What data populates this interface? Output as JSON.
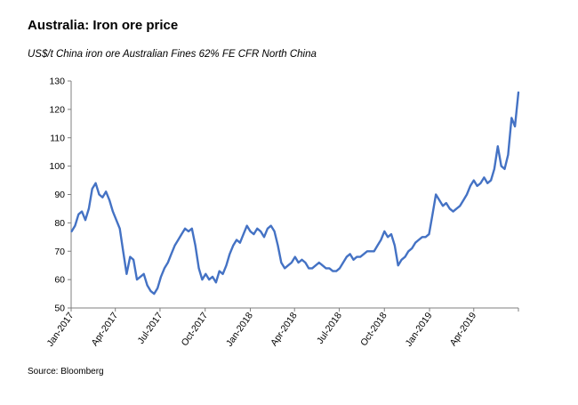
{
  "header": {
    "title": "Australia: Iron ore price",
    "subtitle": "US$/t  China iron ore Australian Fines 62% FE CFR North China"
  },
  "footer": {
    "source": "Source: Bloomberg"
  },
  "chart_data": {
    "type": "line",
    "title": "Australia: Iron ore price",
    "ylabel": "US$/t",
    "xlabel": "",
    "ylim": [
      50,
      130
    ],
    "yticks": [
      50,
      60,
      70,
      80,
      90,
      100,
      110,
      120,
      130
    ],
    "xlim": [
      "2017-01-01",
      "2019-07-01"
    ],
    "xtick_labels": [
      "Jan-2017",
      "Apr-2017",
      "Jul-2017",
      "Oct-2017",
      "Jan-2018",
      "Apr-2018",
      "Jul-2018",
      "Oct-2018",
      "Jan-2019",
      "Apr-2019"
    ],
    "grid": false,
    "legend": "none",
    "series_color": "#4472C4",
    "series": [
      {
        "name": "",
        "x": [
          "2017-01-02",
          "2017-01-09",
          "2017-01-16",
          "2017-01-23",
          "2017-01-30",
          "2017-02-06",
          "2017-02-13",
          "2017-02-20",
          "2017-02-27",
          "2017-03-06",
          "2017-03-13",
          "2017-03-20",
          "2017-03-27",
          "2017-04-03",
          "2017-04-10",
          "2017-04-17",
          "2017-04-24",
          "2017-05-01",
          "2017-05-08",
          "2017-05-15",
          "2017-05-22",
          "2017-05-29",
          "2017-06-05",
          "2017-06-12",
          "2017-06-19",
          "2017-06-26",
          "2017-07-03",
          "2017-07-10",
          "2017-07-17",
          "2017-07-24",
          "2017-07-31",
          "2017-08-07",
          "2017-08-14",
          "2017-08-21",
          "2017-08-28",
          "2017-09-04",
          "2017-09-11",
          "2017-09-18",
          "2017-09-25",
          "2017-10-02",
          "2017-10-09",
          "2017-10-16",
          "2017-10-23",
          "2017-10-30",
          "2017-11-06",
          "2017-11-13",
          "2017-11-20",
          "2017-11-27",
          "2017-12-04",
          "2017-12-11",
          "2017-12-18",
          "2017-12-25",
          "2018-01-01",
          "2018-01-08",
          "2018-01-15",
          "2018-01-22",
          "2018-01-29",
          "2018-02-05",
          "2018-02-12",
          "2018-02-19",
          "2018-02-26",
          "2018-03-05",
          "2018-03-12",
          "2018-03-19",
          "2018-03-26",
          "2018-04-02",
          "2018-04-09",
          "2018-04-16",
          "2018-04-23",
          "2018-04-30",
          "2018-05-07",
          "2018-05-14",
          "2018-05-21",
          "2018-05-28",
          "2018-06-04",
          "2018-06-11",
          "2018-06-18",
          "2018-06-25",
          "2018-07-02",
          "2018-07-09",
          "2018-07-16",
          "2018-07-23",
          "2018-07-30",
          "2018-08-06",
          "2018-08-13",
          "2018-08-20",
          "2018-08-27",
          "2018-09-03",
          "2018-09-10",
          "2018-09-17",
          "2018-09-24",
          "2018-10-01",
          "2018-10-08",
          "2018-10-15",
          "2018-10-22",
          "2018-10-29",
          "2018-11-05",
          "2018-11-12",
          "2018-11-19",
          "2018-11-26",
          "2018-12-03",
          "2018-12-10",
          "2018-12-17",
          "2018-12-24",
          "2018-12-31",
          "2019-01-07",
          "2019-01-14",
          "2019-01-21",
          "2019-01-28",
          "2019-02-04",
          "2019-02-11",
          "2019-02-18",
          "2019-02-25",
          "2019-03-04",
          "2019-03-11",
          "2019-03-18",
          "2019-03-25",
          "2019-04-01",
          "2019-04-08",
          "2019-04-15",
          "2019-04-22",
          "2019-04-29",
          "2019-05-06",
          "2019-05-13",
          "2019-05-20",
          "2019-05-27",
          "2019-06-03",
          "2019-06-10",
          "2019-06-17",
          "2019-06-24",
          "2019-07-01"
        ],
        "values": [
          77,
          79,
          83,
          84,
          81,
          85,
          92,
          94,
          90,
          89,
          91,
          88,
          84,
          81,
          78,
          70,
          62,
          68,
          67,
          60,
          61,
          62,
          58,
          56,
          55,
          57,
          61,
          64,
          66,
          69,
          72,
          74,
          76,
          78,
          77,
          78,
          72,
          64,
          60,
          62,
          60,
          61,
          59,
          63,
          62,
          65,
          69,
          72,
          74,
          73,
          76,
          79,
          77,
          76,
          78,
          77,
          75,
          78,
          79,
          77,
          72,
          66,
          64,
          65,
          66,
          68,
          66,
          67,
          66,
          64,
          64,
          65,
          66,
          65,
          64,
          64,
          63,
          63,
          64,
          66,
          68,
          69,
          67,
          68,
          68,
          69,
          70,
          70,
          70,
          72,
          74,
          77,
          75,
          76,
          72,
          65,
          67,
          68,
          70,
          71,
          73,
          74,
          75,
          75,
          76,
          83,
          90,
          88,
          86,
          87,
          85,
          84,
          85,
          86,
          88,
          90,
          93,
          95,
          93,
          94,
          96,
          94,
          95,
          99,
          107,
          100,
          99,
          104,
          117,
          114,
          126
        ]
      }
    ]
  }
}
